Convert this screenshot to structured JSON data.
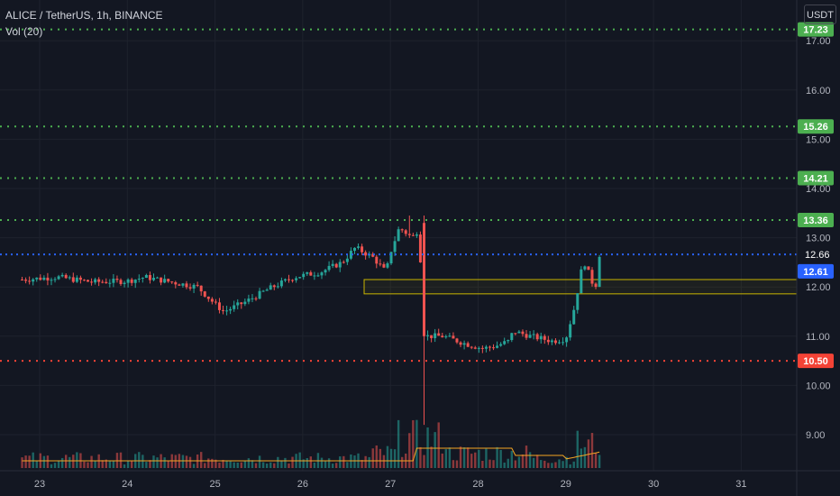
{
  "header": {
    "symbol_line": "ALICE / TetherUS, 1h, BINANCE",
    "indicator_label": "Vol (20)",
    "currency_button": "USDT"
  },
  "colors": {
    "background": "#131722",
    "up": "#26a69a",
    "down": "#ef5350",
    "support_resistance": "#4caf50",
    "stop_level": "#f44336",
    "current_line": "#2962ff",
    "zone": "#c8b400",
    "volume_ma": "#f5a623"
  },
  "chart_data": {
    "type": "candlestick",
    "title": "ALICE / TetherUS, 1h, BINANCE",
    "ylim": [
      8.85,
      17.9
    ],
    "y_ticks": [
      "9.00",
      "10.00",
      "11.00",
      "12.00",
      "13.00",
      "14.00",
      "15.00",
      "16.00",
      "17.00"
    ],
    "x_ticks": [
      "23",
      "24",
      "25",
      "26",
      "27",
      "28",
      "29",
      "30",
      "31"
    ],
    "xlim": [
      22.8,
      31.7
    ],
    "horizontal_levels": [
      {
        "value": 17.23,
        "label": "17.23",
        "color": "#4caf50"
      },
      {
        "value": 15.26,
        "label": "15.26",
        "color": "#4caf50"
      },
      {
        "value": 14.21,
        "label": "14.21",
        "color": "#4caf50"
      },
      {
        "value": 13.36,
        "label": "13.36",
        "color": "#4caf50"
      },
      {
        "value": 10.5,
        "label": "10.50",
        "color": "#f44336"
      }
    ],
    "current_price_line": {
      "value": 12.66,
      "label": "12.66"
    },
    "last_price": {
      "value": 12.61,
      "label": "12.61"
    },
    "zone": {
      "x_start": 26.7,
      "y_low": 11.86,
      "y_high": 12.15
    },
    "price_path": [
      [
        22.8,
        12.15
      ],
      [
        23.2,
        12.2
      ],
      [
        23.6,
        12.1
      ],
      [
        24.0,
        12.12
      ],
      [
        24.2,
        12.2
      ],
      [
        24.5,
        12.1
      ],
      [
        24.8,
        12.0
      ],
      [
        25.0,
        11.65
      ],
      [
        25.1,
        11.5
      ],
      [
        25.35,
        11.7
      ],
      [
        25.6,
        11.95
      ],
      [
        25.9,
        12.2
      ],
      [
        26.2,
        12.3
      ],
      [
        26.45,
        12.5
      ],
      [
        26.6,
        12.8
      ],
      [
        26.8,
        12.6
      ],
      [
        26.95,
        12.3
      ],
      [
        27.0,
        12.7
      ],
      [
        27.1,
        13.2
      ],
      [
        27.25,
        13.0
      ],
      [
        27.33,
        13.2
      ],
      [
        27.37,
        11.0
      ],
      [
        27.6,
        11.0
      ],
      [
        27.85,
        10.85
      ],
      [
        28.05,
        10.75
      ],
      [
        28.2,
        10.8
      ],
      [
        28.35,
        10.9
      ],
      [
        28.4,
        11.1
      ],
      [
        28.6,
        11.0
      ],
      [
        28.85,
        10.9
      ],
      [
        29.0,
        10.95
      ],
      [
        29.1,
        11.6
      ],
      [
        29.2,
        12.55
      ],
      [
        29.3,
        12.1
      ],
      [
        29.38,
        12.0
      ],
      [
        29.42,
        12.61
      ]
    ],
    "series": [
      {
        "name": "Vol (20)",
        "type": "volume"
      }
    ]
  }
}
